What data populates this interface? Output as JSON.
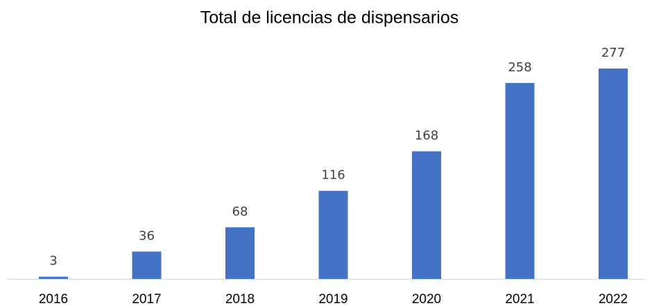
{
  "chart_data": {
    "type": "bar",
    "title": "Total de licencias de dispensarios",
    "categories": [
      "2016",
      "2017",
      "2018",
      "2019",
      "2020",
      "2021",
      "2022"
    ],
    "values": [
      3,
      36,
      68,
      116,
      168,
      258,
      277
    ],
    "color": "#4472c4"
  }
}
